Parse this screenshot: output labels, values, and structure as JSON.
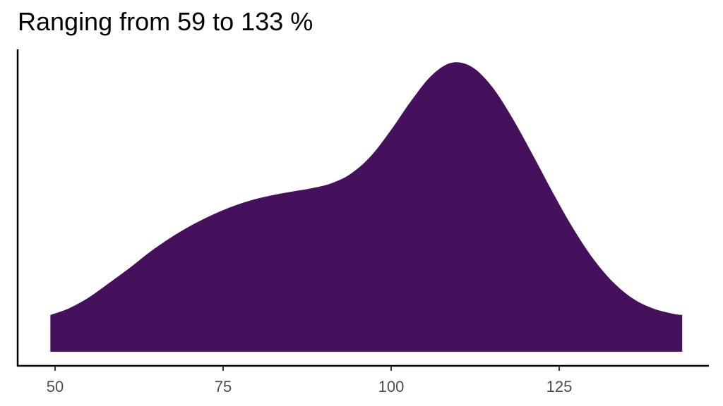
{
  "chart_data": {
    "type": "area",
    "subtype": "density",
    "title": "Ranging from 59 to 133 %",
    "xlabel": "",
    "ylabel": "",
    "xlim": [
      48,
      144
    ],
    "xticks": [
      50,
      75,
      100,
      125
    ],
    "y_axis_ticks": "none",
    "grid": false,
    "legend": "none",
    "fill_color": "#45105C",
    "series": [
      {
        "x": [
          49.3,
          52,
          55,
          58,
          61,
          64,
          67,
          70,
          73,
          76,
          79,
          82,
          85,
          88,
          91,
          94,
          97,
          100,
          103,
          106,
          109,
          112,
          115,
          118,
          121,
          124,
          127,
          130,
          133,
          136,
          139,
          142,
          143.3
        ],
        "y": [
          0.0097,
          0.0114,
          0.0143,
          0.0181,
          0.022,
          0.0262,
          0.0299,
          0.0331,
          0.0358,
          0.0381,
          0.0399,
          0.0412,
          0.0422,
          0.0431,
          0.0444,
          0.047,
          0.0517,
          0.0586,
          0.0663,
          0.0729,
          0.0763,
          0.0752,
          0.07,
          0.0618,
          0.0522,
          0.0422,
          0.0328,
          0.0247,
          0.0184,
          0.014,
          0.0114,
          0.01,
          0.0097
        ]
      }
    ]
  }
}
